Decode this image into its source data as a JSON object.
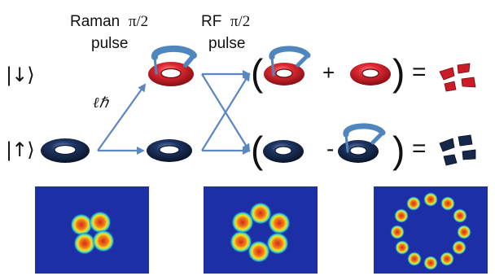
{
  "stage1": {
    "name": "Raman",
    "fraction": "π/2",
    "line2": "pulse"
  },
  "stage2": {
    "name": "RF",
    "fraction": "π/2",
    "line2": "pulse"
  },
  "kets": {
    "down": "|↓⟩",
    "up": "|↑⟩"
  },
  "momentum_label": "ℓℏ",
  "operators": {
    "plus": "+",
    "minus": "-",
    "equals_top": "=",
    "equals_bottom": "="
  },
  "parens": {
    "open": "(",
    "close": ")"
  },
  "colors": {
    "red_torus": "#d6202b",
    "navy_torus": "#16284a",
    "arrow": "#5b86c4",
    "vortex_ribbon": "#4f86bd",
    "density_background": "#1c2fa7",
    "density_peak": "#d42a1d"
  },
  "density_images": [
    {
      "lobes": 4,
      "description_icon": "density-panel-4-lobes"
    },
    {
      "lobes": 6,
      "description_icon": "density-panel-6-lobes"
    },
    {
      "lobes": 12,
      "description_icon": "density-panel-12-lobes"
    }
  ]
}
